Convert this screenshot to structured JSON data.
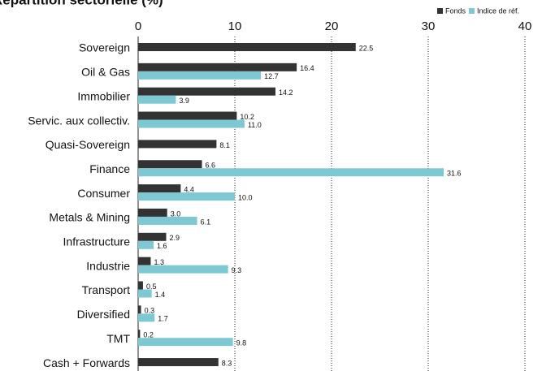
{
  "chart_data": {
    "type": "hbar",
    "title": "Répartition sectorielle (%)",
    "categories": [
      "Sovereign",
      "Oil & Gas",
      "Immobilier",
      "Servic. aux collectiv.",
      "Quasi-Sovereign",
      "Finance",
      "Consumer",
      "Metals & Mining",
      "Infrastructure",
      "Industrie",
      "Transport",
      "Diversified",
      "TMT",
      "Cash + Forwards"
    ],
    "series": [
      {
        "name": "Fonds",
        "color": "#333333",
        "values": [
          22.5,
          16.4,
          14.2,
          10.2,
          8.1,
          6.6,
          4.4,
          3.0,
          2.9,
          1.3,
          0.5,
          0.3,
          0.2,
          8.3
        ],
        "value_labels": [
          "22.5",
          "16.4",
          "14.2",
          "10.2",
          "8.1",
          "6.6",
          "4.4",
          "3.0",
          "2.9",
          "1.3",
          "0.5",
          "0.3",
          "0.2",
          "8.3"
        ]
      },
      {
        "name": "Indice de réf.",
        "color": "#7ec8d3",
        "values": [
          null,
          12.7,
          3.9,
          11.0,
          null,
          31.6,
          10.0,
          6.1,
          1.6,
          9.3,
          1.4,
          1.7,
          9.8,
          null
        ],
        "value_labels": [
          null,
          "12.7",
          "3.9",
          "11.0",
          null,
          "31.6",
          "10.0",
          "6.1",
          "1.6",
          "9.3",
          "1.4",
          "1.7",
          "9.8",
          null
        ]
      }
    ],
    "xlim": [
      0,
      40
    ],
    "xticks": [
      0,
      10,
      20,
      30,
      40
    ],
    "grid": true,
    "legend": "top-right"
  }
}
